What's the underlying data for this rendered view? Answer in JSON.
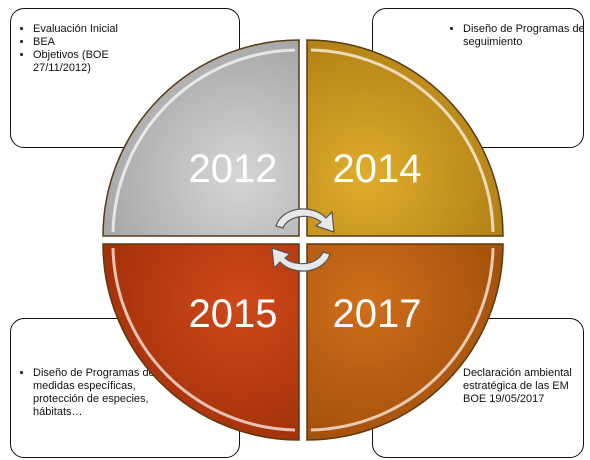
{
  "boxes": [
    {
      "items": [
        "Evaluación Inicial",
        "BEA",
        "Objetivos (BOE 27/11/2012)"
      ]
    },
    {
      "items": [
        "Diseño de Programas de seguimiento"
      ]
    },
    {
      "items": [
        "Diseño de Programas de medidas específicas, protección de especies, hábitats…"
      ]
    },
    {
      "lines": [
        "Declaración ambiental estratégica de las EM",
        "BOE 19/05/2017"
      ]
    }
  ],
  "quadrants": [
    {
      "label": "2012"
    },
    {
      "label": "2014"
    },
    {
      "label": "2015"
    },
    {
      "label": "2017"
    }
  ]
}
